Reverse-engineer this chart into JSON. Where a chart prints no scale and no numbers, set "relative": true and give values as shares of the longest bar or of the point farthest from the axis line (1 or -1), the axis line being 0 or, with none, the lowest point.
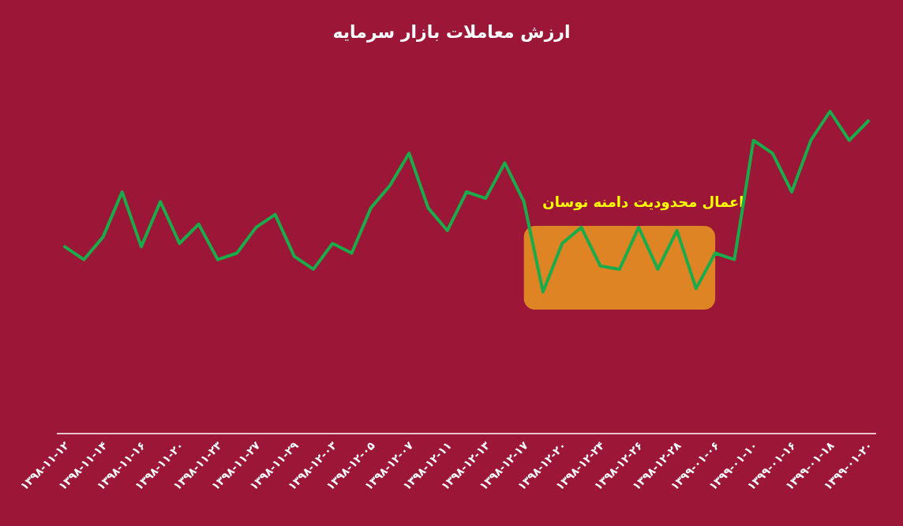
{
  "chart_data": {
    "type": "line",
    "title": "ارزش معاملات بازار سرمایه",
    "relative": true,
    "categories": [
      "۱۳۹۸-۱۱-۱۲",
      null,
      "۱۳۹۸-۱۱-۱۴",
      null,
      "۱۳۹۸-۱۱-۱۶",
      null,
      "۱۳۹۸-۱۱-۲۰",
      null,
      "۱۳۹۸-۱۱-۲۳",
      null,
      "۱۳۹۸-۱۱-۲۷",
      null,
      "۱۳۹۸-۱۱-۲۹",
      null,
      "۱۳۹۸-۱۲-۰۳",
      null,
      "۱۳۹۸-۱۲-۰۵",
      null,
      "۱۳۹۸-۱۲-۰۷",
      null,
      "۱۳۹۸-۱۲-۱۱",
      null,
      "۱۳۹۸-۱۲-۱۳",
      null,
      "۱۳۹۸-۱۲-۱۷",
      null,
      "۱۳۹۸-۱۲-۲۰",
      null,
      "۱۳۹۸-۱۲-۲۴",
      null,
      "۱۳۹۸-۱۲-۲۶",
      null,
      "۱۳۹۸-۱۲-۲۸",
      null,
      "۱۳۹۹-۰۱-۰۶",
      null,
      "۱۳۹۹-۰۱-۱۰",
      null,
      "۱۳۹۹-۰۱-۱۶",
      null,
      "۱۳۹۹-۰۱-۱۸",
      null,
      "۱۳۹۹-۰۱-۲۰"
    ],
    "series": [
      {
        "color": "#1aab4a",
        "values": [
          0.58,
          0.54,
          0.61,
          0.75,
          0.58,
          0.72,
          0.59,
          0.65,
          0.54,
          0.56,
          0.64,
          0.68,
          0.55,
          0.51,
          0.59,
          0.56,
          0.7,
          0.77,
          0.87,
          0.7,
          0.63,
          0.75,
          0.73,
          0.84,
          0.72,
          0.44,
          0.59,
          0.64,
          0.52,
          0.51,
          0.64,
          0.51,
          0.63,
          0.45,
          0.56,
          0.54,
          0.91,
          0.87,
          0.75,
          0.91,
          1,
          0.91,
          0.97
        ]
      }
    ],
    "bands": [
      {
        "axis": "x",
        "from": "۱۳۹۸-۱۲-۱۷",
        "to": "۱۳۹۹-۰۱-۰۶",
        "label": "اعمال محدودیت دامنه نوسان",
        "color": "#f0a020"
      }
    ]
  }
}
